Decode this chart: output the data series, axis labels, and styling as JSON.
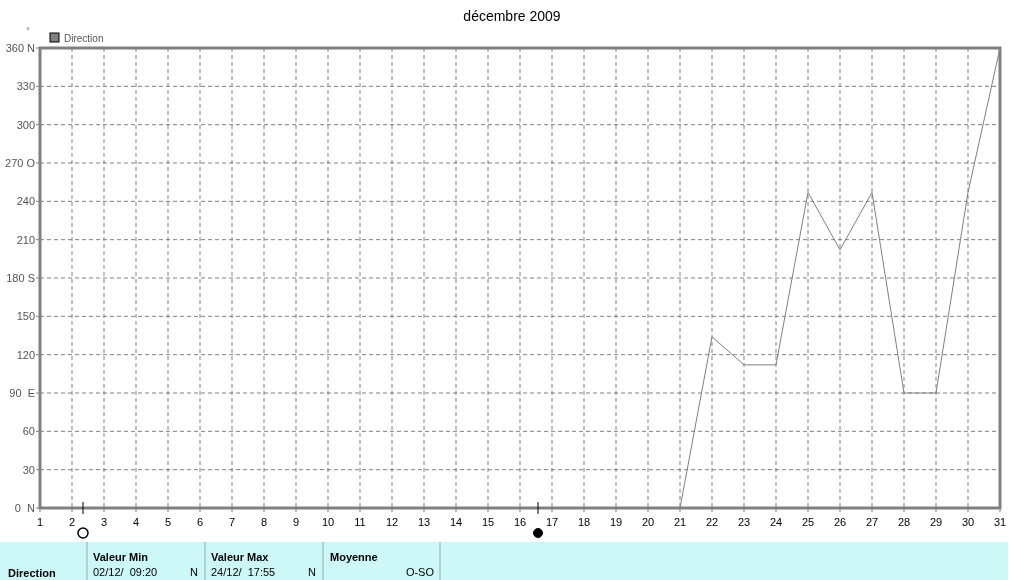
{
  "chart_data": {
    "type": "line",
    "title": "décembre 2009",
    "ylabel": "°",
    "xlim": [
      1,
      31
    ],
    "xticks": [
      1,
      2,
      3,
      4,
      5,
      6,
      7,
      8,
      9,
      10,
      11,
      12,
      13,
      14,
      15,
      16,
      17,
      18,
      19,
      20,
      21,
      22,
      23,
      24,
      25,
      26,
      27,
      28,
      29,
      30,
      31
    ],
    "ylim": [
      0,
      360
    ],
    "yticks": [
      {
        "value": 0,
        "label": "0  N"
      },
      30,
      60,
      {
        "value": 90,
        "label": "90  E"
      },
      120,
      150,
      {
        "value": 180,
        "label": "180 S"
      },
      210,
      240,
      {
        "value": 270,
        "label": "270 O"
      },
      300,
      330,
      {
        "value": 360,
        "label": "360 N"
      }
    ],
    "series": [
      {
        "name": "Direction",
        "color": "#808080",
        "x": [
          21,
          22,
          23,
          24,
          25,
          26,
          27,
          28,
          29,
          30,
          31
        ],
        "values": [
          0,
          134,
          112,
          112,
          247,
          202,
          247,
          90,
          90,
          247,
          360
        ]
      }
    ],
    "grid": true,
    "legend": "top left",
    "line_style": "solid",
    "marker": "none",
    "annotations": [
      "Direction",
      "Valeur Min",
      "02/12/  09:20",
      "N",
      "Valeur Max",
      "24/12/  17:55",
      "N",
      "Moyenne",
      "O-SO"
    ]
  }
}
